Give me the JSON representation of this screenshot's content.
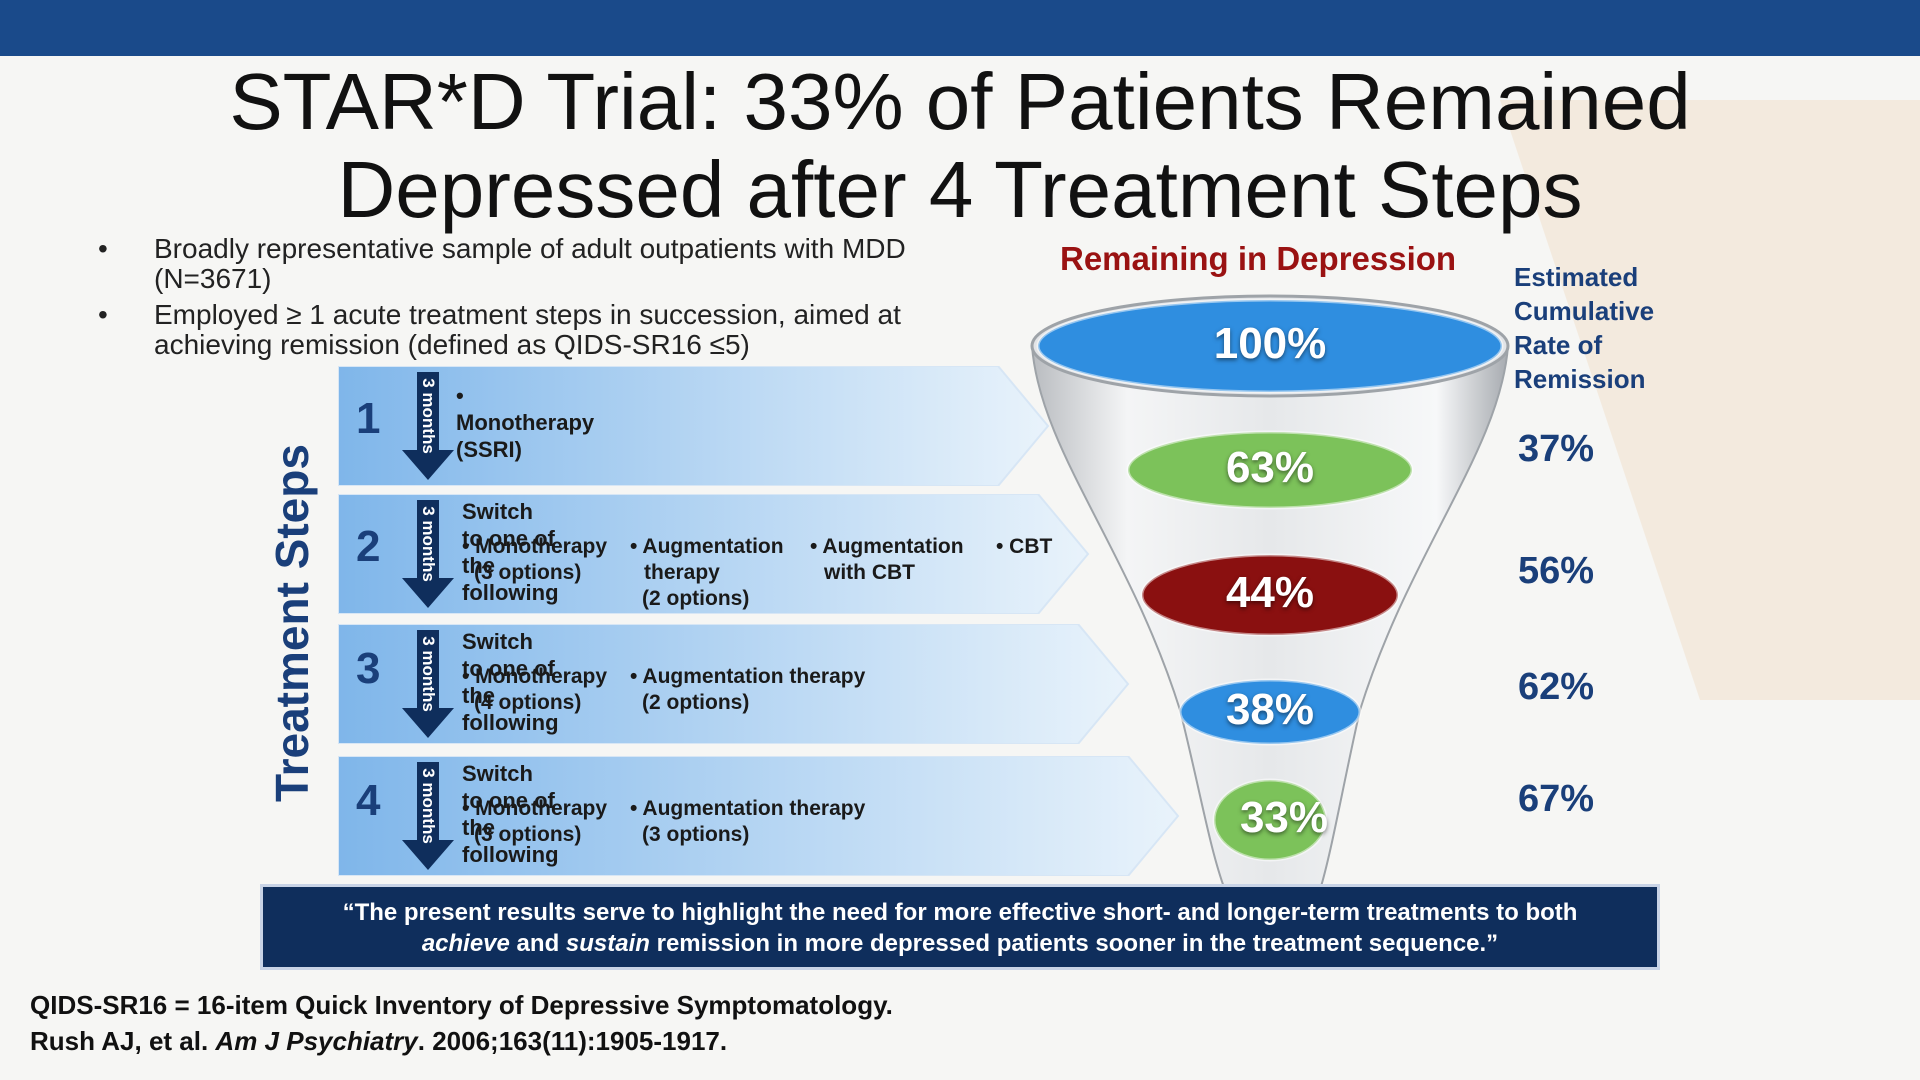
{
  "title_line1": "STAR*D Trial: 33% of Patients Remained",
  "title_line2": "Depressed after 4 Treatment Steps",
  "bullets": [
    {
      "line1": "Broadly representative sample of adult outpatients with MDD",
      "line2": "(N=3671)"
    },
    {
      "line1": "Employed ≥ 1 acute treatment steps in succession, aimed at",
      "line2": "achieving remission  (defined as QIDS-SR16 ≤5)"
    }
  ],
  "bullet_char": "•",
  "vertical_label": "Treatment Steps",
  "months_label": "3 months",
  "steps": [
    {
      "number": "1",
      "heading": "• Monotherapy (SSRI)",
      "options": []
    },
    {
      "number": "2",
      "heading": "Switch to one of the following",
      "options": [
        {
          "line1": "• Monotherapy",
          "line2": "(3 options)",
          "line3": ""
        },
        {
          "line1": "• Augmentation",
          "line2": "therapy",
          "line3": "(2 options)"
        },
        {
          "line1": "• Augmentation",
          "line2": "with CBT",
          "line3": ""
        },
        {
          "line1": "• CBT",
          "line2": "",
          "line3": ""
        }
      ]
    },
    {
      "number": "3",
      "heading": "Switch to one of the following",
      "options": [
        {
          "line1": "• Monotherapy",
          "line2": "(4 options)"
        },
        {
          "line1": "• Augmentation therapy",
          "line2": "(2 options)"
        }
      ]
    },
    {
      "number": "4",
      "heading": "Switch to one of the following",
      "options": [
        {
          "line1": "• Monotherapy",
          "line2": "(3 options)"
        },
        {
          "line1": "• Augmentation therapy",
          "line2": "(3 options)"
        }
      ]
    }
  ],
  "funnel": {
    "title": "Remaining in Depression",
    "levels": [
      {
        "label": "100%",
        "value": 100,
        "color": "#2f8ee0"
      },
      {
        "label": "63%",
        "value": 63,
        "color": "#7cc25a"
      },
      {
        "label": "44%",
        "value": 44,
        "color": "#8a1010"
      },
      {
        "label": "38%",
        "value": 38,
        "color": "#2f8ee0"
      },
      {
        "label": "33%",
        "value": 33,
        "color": "#7cc25a"
      }
    ]
  },
  "estimated": {
    "heading": [
      "Estimated",
      "Cumulative",
      "Rate of",
      "Remission"
    ],
    "values": [
      "37%",
      "56%",
      "62%",
      "67%"
    ]
  },
  "quote": {
    "line1": "“The present results serve to highlight the need for more effective short- and longer-term treatments to both",
    "line2_em1": "achieve",
    "line2_mid": " and ",
    "line2_em2": "sustain",
    "line2_rest": " remission in more depressed patients sooner in the treatment sequence.”"
  },
  "footnote": {
    "line1": "QIDS-SR16 = 16-item Quick Inventory of Depressive Symptomatology.",
    "line2_a": "Rush AJ, et al. ",
    "line2_journal": "Am J Psychiatry",
    "line2_b": ". 2006;163(11):1905-1917."
  },
  "colors": {
    "header_bar": "#1a4a8a",
    "navy": "#1a3f7a",
    "quote_bg": "#0f2e5c",
    "funnel_title": "#9a1212"
  }
}
